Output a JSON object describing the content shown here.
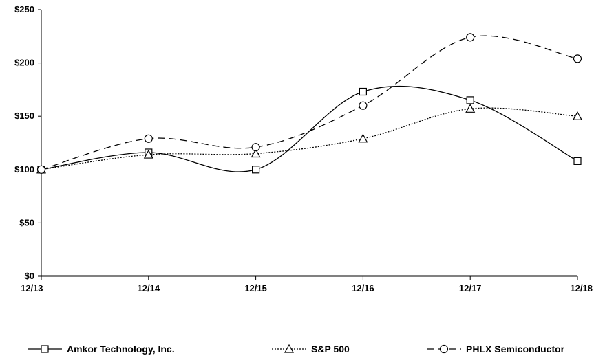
{
  "chart_data": {
    "type": "line",
    "title": "",
    "xlabel": "",
    "ylabel": "",
    "categories": [
      "12/13",
      "12/14",
      "12/15",
      "12/16",
      "12/17",
      "12/18"
    ],
    "ylim": [
      0,
      250
    ],
    "yticks": [
      0,
      50,
      100,
      150,
      200,
      250
    ],
    "ytick_labels": [
      "$0",
      "$50",
      "$100",
      "$150",
      "$200",
      "$250"
    ],
    "grid": false,
    "legend_position": "bottom",
    "series": [
      {
        "name": "Amkor Technology, Inc.",
        "values": [
          100,
          116,
          100,
          173,
          165,
          108
        ],
        "marker": "square",
        "dash": "solid",
        "color": "#000000"
      },
      {
        "name": "S&P 500",
        "values": [
          100,
          114,
          115,
          129,
          157,
          150
        ],
        "marker": "triangle",
        "dash": "dotted",
        "color": "#000000"
      },
      {
        "name": "PHLX Semiconductor",
        "values": [
          100,
          129,
          121,
          160,
          224,
          204
        ],
        "marker": "circle",
        "dash": "dashed",
        "color": "#000000"
      }
    ]
  }
}
